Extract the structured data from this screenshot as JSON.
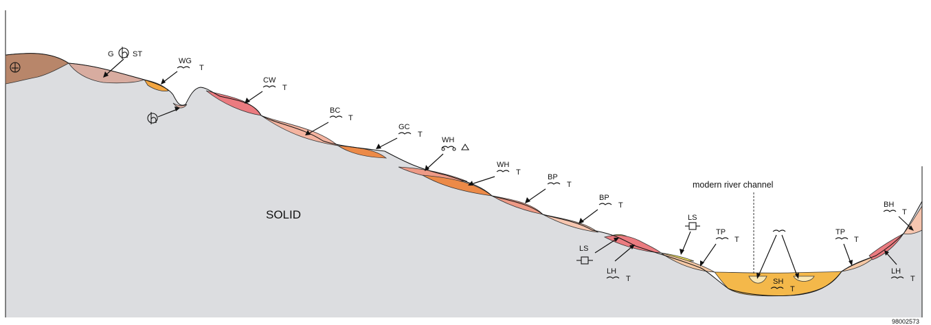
{
  "colors": {
    "solid": "#dcdde0",
    "clay_with_flints": "#b8866a",
    "mauve": "#d8aca0",
    "orange_light": "#f2a540",
    "pink_dark": "#eb7b80",
    "peach": "#f4b4a0",
    "orange": "#ec8a48",
    "salmon": "#ee9a86",
    "light_peach": "#f6c6b0",
    "yellow": "#f3e35c",
    "cream": "#fbe8b4",
    "tan": "#f5c8a5",
    "gold": "#f4b84a"
  },
  "labels": {
    "solid": "SOLID",
    "river": "modern river channel",
    "g_st_left": "G",
    "g_st_right": "ST",
    "wg": "WG",
    "wg_t": "T",
    "cw": "CW",
    "cw_t": "T",
    "bc": "BC",
    "bc_t": "T",
    "gc": "GC",
    "gc_t": "T",
    "wh_tri": "WH",
    "wh": "WH",
    "wh_t": "T",
    "bp1": "BP",
    "bp1_t": "T",
    "bp2": "BP",
    "bp2_t": "T",
    "ls1": "LS",
    "ls2": "LS",
    "lh1": "LH",
    "lh1_t": "T",
    "tp1": "TP",
    "tp1_t": "T",
    "sh": "SH",
    "sh_t": "T",
    "tp2": "TP",
    "tp2_t": "T",
    "bh": "BH",
    "bh_t": "T",
    "lh2": "LH",
    "lh2_t": "T",
    "ref": "98002573"
  }
}
